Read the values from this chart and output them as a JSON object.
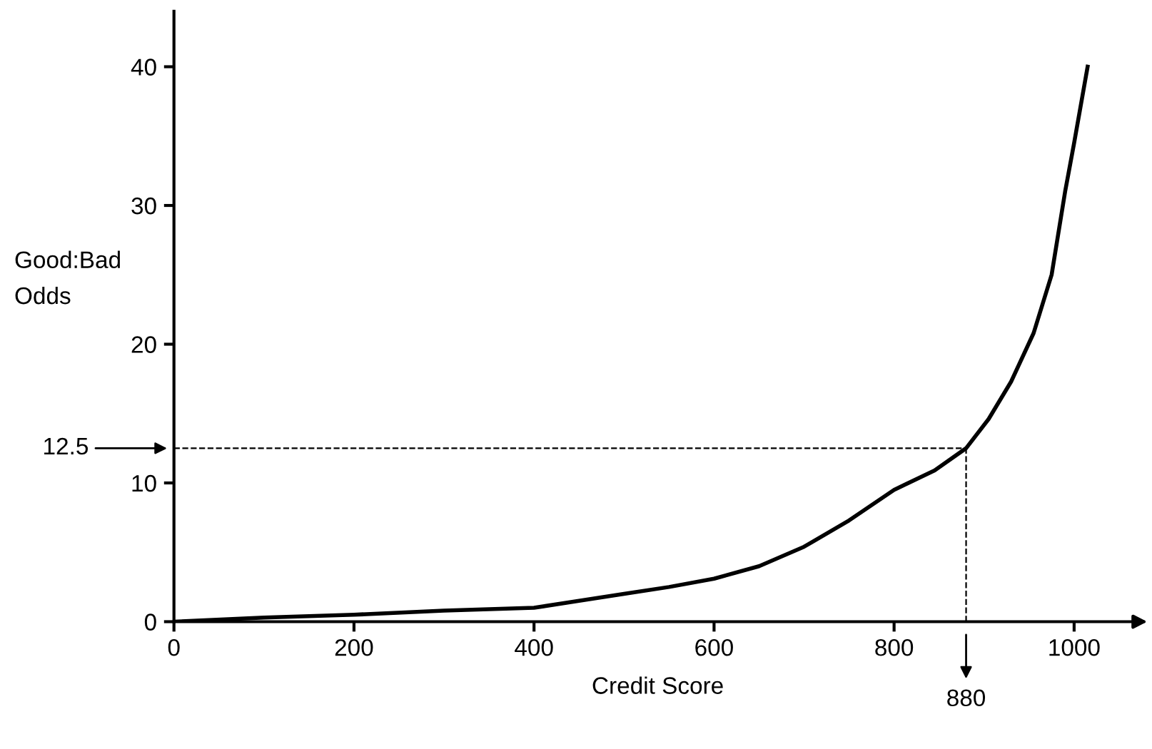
{
  "chart_data": {
    "type": "line",
    "xlabel": "Credit Score",
    "ylabel": "Good:Bad\nOdds",
    "x": [
      0,
      100,
      200,
      300,
      400,
      450,
      500,
      550,
      600,
      650,
      700,
      750,
      800,
      845,
      880,
      905,
      930,
      955,
      975,
      990,
      1000,
      1015
    ],
    "series": [
      {
        "color": "#000000",
        "values": [
          0,
          0.3,
          0.5,
          0.8,
          1.0,
          1.5,
          2.0,
          2.5,
          3.1,
          4.0,
          5.4,
          7.3,
          9.5,
          10.9,
          12.5,
          14.6,
          17.3,
          20.8,
          25,
          31,
          34.5,
          40
        ]
      }
    ],
    "xlim": [
      0,
      1075
    ],
    "ylim": [
      0,
      44
    ],
    "xticks": [
      0,
      200,
      400,
      600,
      800,
      1000
    ],
    "yticks": [
      0,
      10,
      20,
      30,
      40
    ],
    "ref_lines": [
      {
        "axis": "y",
        "value": 12.5,
        "label": "12.5",
        "color": "#000000",
        "line_style": "dashed"
      },
      {
        "axis": "x",
        "value": 880,
        "label": "880",
        "color": "#000000",
        "line_style": "dashed"
      }
    ],
    "grid": false,
    "legend": false,
    "marker": "none",
    "line_style": "solid"
  }
}
